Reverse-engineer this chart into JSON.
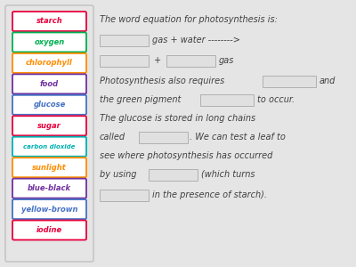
{
  "background_color": "#e5e5e5",
  "labels": [
    {
      "text": "starch",
      "color": "#e8003d",
      "border": "#e8003d"
    },
    {
      "text": "oxygen",
      "color": "#00b050",
      "border": "#00b050"
    },
    {
      "text": "chlorophyll",
      "color": "#ff8c00",
      "border": "#ff8c00"
    },
    {
      "text": "food",
      "color": "#7030a0",
      "border": "#7030a0"
    },
    {
      "text": "glucose",
      "color": "#4472c4",
      "border": "#4472c4"
    },
    {
      "text": "sugar",
      "color": "#e8003d",
      "border": "#e8003d"
    },
    {
      "text": "carbon dioxide",
      "color": "#00b0b0",
      "border": "#00b0b0"
    },
    {
      "text": "sunlight",
      "color": "#ff8c00",
      "border": "#ff8c00"
    },
    {
      "text": "blue-black",
      "color": "#7030a0",
      "border": "#7030a0"
    },
    {
      "text": "yellow-brown",
      "color": "#4472c4",
      "border": "#4472c4"
    },
    {
      "text": "iodine",
      "color": "#e8003d",
      "border": "#e8003d"
    }
  ],
  "panel_border": "#c0c0c0",
  "blank_color": "#e0e0e0",
  "blank_border": "#b0b0b0",
  "text_color": "#404040",
  "font_size": 7.0,
  "label_font_size": 6.0,
  "label_font_size_small": 5.0
}
